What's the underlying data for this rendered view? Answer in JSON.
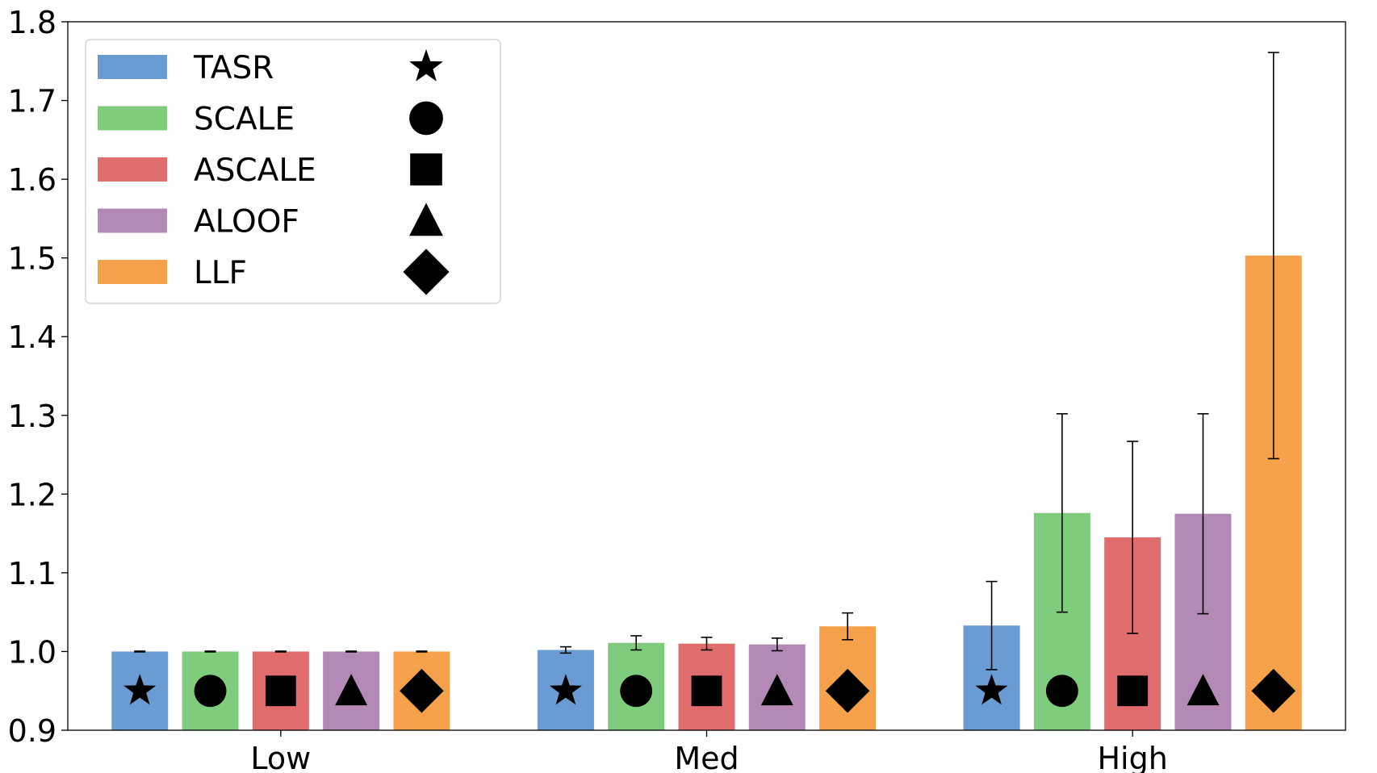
{
  "chart_data": {
    "type": "bar",
    "title": "",
    "xlabel": "",
    "ylabel": "",
    "categories": [
      "Low",
      "Med",
      "High"
    ],
    "ylim": [
      0.9,
      1.8
    ],
    "yticks": [
      "0.9",
      "1.0",
      "1.1",
      "1.2",
      "1.3",
      "1.4",
      "1.5",
      "1.6",
      "1.7",
      "1.8"
    ],
    "grid": false,
    "legend_position": "top-left",
    "series": [
      {
        "name": "TASR",
        "color": "#6b9bd3",
        "marker": "star",
        "values": [
          1.0,
          1.002,
          1.033
        ],
        "errors": [
          0.0005,
          0.004,
          0.056
        ]
      },
      {
        "name": "SCALE",
        "color": "#7fcd7c",
        "marker": "circle",
        "values": [
          1.0,
          1.011,
          1.176
        ],
        "errors": [
          0.0005,
          0.009,
          0.126
        ]
      },
      {
        "name": "ASCALE",
        "color": "#e06c6c",
        "marker": "square",
        "values": [
          1.0,
          1.01,
          1.145
        ],
        "errors": [
          0.0005,
          0.008,
          0.122
        ]
      },
      {
        "name": "ALOOF",
        "color": "#b589b6",
        "marker": "triangle",
        "values": [
          1.0,
          1.009,
          1.175
        ],
        "errors": [
          0.0005,
          0.008,
          0.127
        ]
      },
      {
        "name": "LLF",
        "color": "#f5a14b",
        "marker": "diamond",
        "values": [
          1.0,
          1.032,
          1.503
        ],
        "errors": [
          0.0005,
          0.017,
          0.258
        ]
      }
    ]
  }
}
